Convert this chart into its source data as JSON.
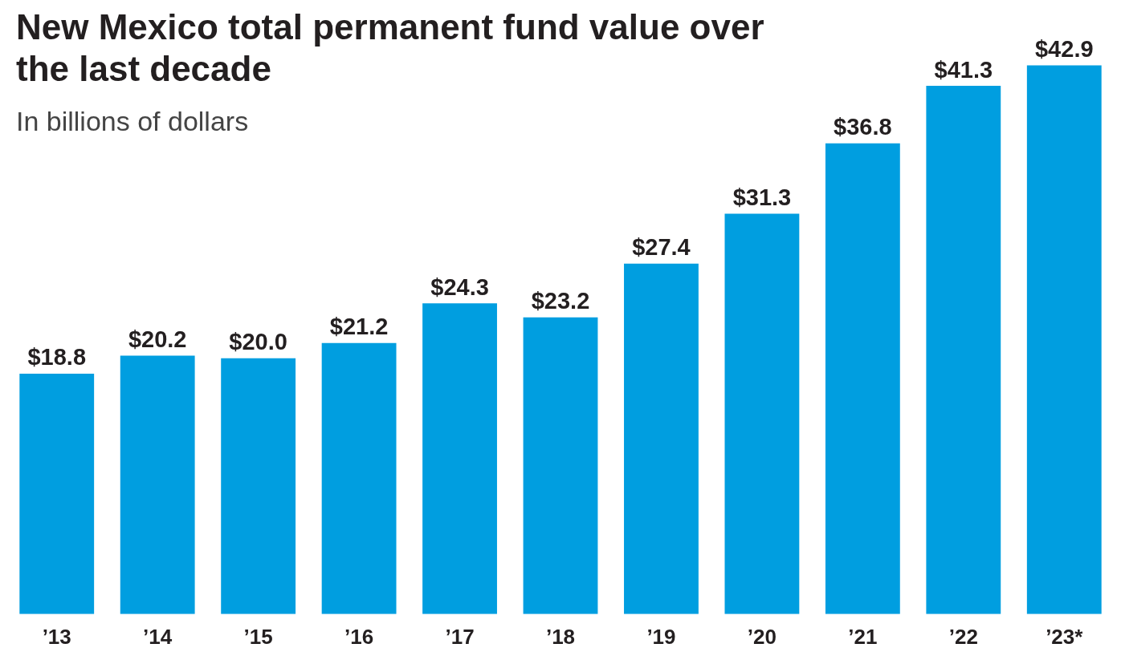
{
  "chart_data": {
    "type": "bar",
    "title": "New Mexico total permanent fund value over the last decade",
    "subtitle": "In billions of dollars",
    "categories": [
      "’13",
      "’14",
      "’15",
      "’16",
      "’17",
      "’18",
      "’19",
      "’20",
      "’21",
      "’22",
      "’23*"
    ],
    "values": [
      18.8,
      20.2,
      20.0,
      21.2,
      24.3,
      23.2,
      27.4,
      31.3,
      36.8,
      41.3,
      42.9
    ],
    "value_labels": [
      "$18.8",
      "$20.2",
      "$20.0",
      "$21.2",
      "$24.3",
      "$23.2",
      "$27.4",
      "$31.3",
      "$36.8",
      "$41.3",
      "$42.9"
    ],
    "color": "#009ee0",
    "grid": false,
    "legend": false,
    "tick_labels": "x"
  }
}
